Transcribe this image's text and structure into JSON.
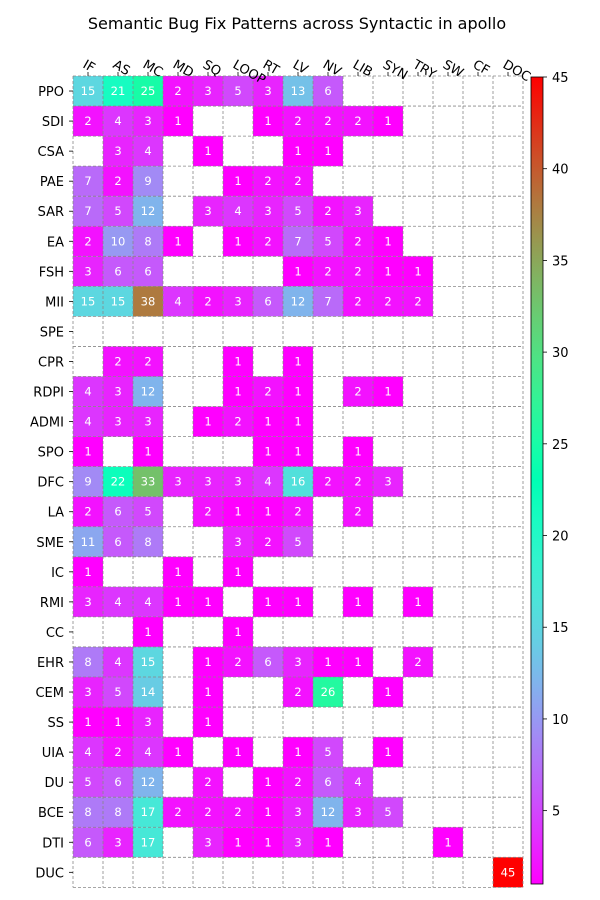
{
  "chart_data": {
    "type": "heatmap",
    "title": "Semantic Bug Fix Patterns across Syntactic in apollo",
    "xlabel": "",
    "ylabel": "",
    "columns": [
      "IF",
      "AS",
      "MC",
      "MD",
      "SQ",
      "LOOP",
      "RT",
      "LV",
      "NV",
      "LIB",
      "SYN",
      "TRY",
      "SW",
      "CF",
      "DOC"
    ],
    "rows": [
      "PPO",
      "SDI",
      "CSA",
      "PAE",
      "SAR",
      "EA",
      "FSH",
      "MII",
      "SPE",
      "CPR",
      "RDPI",
      "ADMI",
      "SPO",
      "DFC",
      "LA",
      "SME",
      "IC",
      "RMI",
      "CC",
      "EHR",
      "CEM",
      "SS",
      "UIA",
      "DU",
      "BCE",
      "DTI",
      "DUC"
    ],
    "values": [
      [
        15,
        21,
        25,
        2,
        3,
        5,
        3,
        13,
        6,
        null,
        null,
        null,
        null,
        null,
        null
      ],
      [
        2,
        4,
        3,
        1,
        null,
        null,
        1,
        2,
        2,
        2,
        1,
        null,
        null,
        null,
        null
      ],
      [
        null,
        3,
        4,
        null,
        1,
        null,
        null,
        1,
        1,
        null,
        null,
        null,
        null,
        null,
        null
      ],
      [
        7,
        2,
        9,
        null,
        null,
        1,
        2,
        2,
        null,
        null,
        null,
        null,
        null,
        null,
        null
      ],
      [
        7,
        5,
        12,
        null,
        3,
        4,
        3,
        5,
        2,
        3,
        null,
        null,
        null,
        null,
        null
      ],
      [
        2,
        10,
        8,
        1,
        null,
        1,
        2,
        7,
        5,
        2,
        1,
        null,
        null,
        null,
        null
      ],
      [
        3,
        6,
        6,
        null,
        null,
        null,
        null,
        1,
        2,
        2,
        1,
        1,
        null,
        null,
        null
      ],
      [
        15,
        15,
        38,
        4,
        2,
        3,
        6,
        12,
        7,
        2,
        2,
        2,
        null,
        null,
        null
      ],
      [
        null,
        null,
        null,
        null,
        null,
        null,
        null,
        null,
        null,
        null,
        null,
        null,
        null,
        null,
        null
      ],
      [
        null,
        2,
        2,
        null,
        null,
        1,
        null,
        1,
        null,
        null,
        null,
        null,
        null,
        null,
        null
      ],
      [
        4,
        3,
        12,
        null,
        null,
        1,
        2,
        1,
        null,
        2,
        1,
        null,
        null,
        null,
        null
      ],
      [
        4,
        3,
        3,
        null,
        1,
        2,
        1,
        1,
        null,
        null,
        null,
        null,
        null,
        null,
        null
      ],
      [
        1,
        null,
        1,
        null,
        null,
        null,
        1,
        1,
        null,
        1,
        null,
        null,
        null,
        null,
        null
      ],
      [
        9,
        22,
        33,
        3,
        3,
        3,
        4,
        16,
        2,
        2,
        3,
        null,
        null,
        null,
        null
      ],
      [
        2,
        6,
        5,
        null,
        2,
        1,
        1,
        2,
        null,
        2,
        null,
        null,
        null,
        null,
        null
      ],
      [
        11,
        6,
        8,
        null,
        null,
        3,
        2,
        5,
        null,
        null,
        null,
        null,
        null,
        null,
        null
      ],
      [
        1,
        null,
        null,
        1,
        null,
        1,
        null,
        null,
        null,
        null,
        null,
        null,
        null,
        null,
        null
      ],
      [
        3,
        4,
        4,
        1,
        1,
        null,
        1,
        1,
        null,
        1,
        null,
        1,
        null,
        null,
        null
      ],
      [
        null,
        null,
        1,
        null,
        null,
        1,
        null,
        null,
        null,
        null,
        null,
        null,
        null,
        null,
        null
      ],
      [
        8,
        4,
        15,
        null,
        1,
        2,
        6,
        3,
        1,
        1,
        null,
        2,
        null,
        null,
        null
      ],
      [
        3,
        5,
        14,
        null,
        1,
        null,
        null,
        2,
        26,
        null,
        1,
        null,
        null,
        null,
        null
      ],
      [
        1,
        1,
        3,
        null,
        1,
        null,
        null,
        null,
        null,
        null,
        null,
        null,
        null,
        null,
        null
      ],
      [
        4,
        2,
        4,
        1,
        null,
        1,
        null,
        1,
        5,
        null,
        1,
        null,
        null,
        null,
        null
      ],
      [
        5,
        6,
        12,
        null,
        2,
        null,
        1,
        2,
        6,
        4,
        null,
        null,
        null,
        null,
        null
      ],
      [
        8,
        8,
        17,
        2,
        2,
        2,
        1,
        3,
        12,
        3,
        5,
        null,
        null,
        null,
        null
      ],
      [
        6,
        3,
        17,
        null,
        3,
        1,
        1,
        3,
        1,
        null,
        null,
        null,
        1,
        null,
        null
      ],
      [
        null,
        null,
        null,
        null,
        null,
        null,
        null,
        null,
        null,
        null,
        null,
        null,
        null,
        null,
        45
      ]
    ],
    "colorscale": "rainbow",
    "colorbar": {
      "min": 1,
      "max": 45,
      "ticks": [
        5,
        10,
        15,
        20,
        25,
        30,
        35,
        40,
        45
      ]
    },
    "grid": true,
    "grid_style": "dashed gray",
    "x_tick_rotation": "-30deg"
  }
}
